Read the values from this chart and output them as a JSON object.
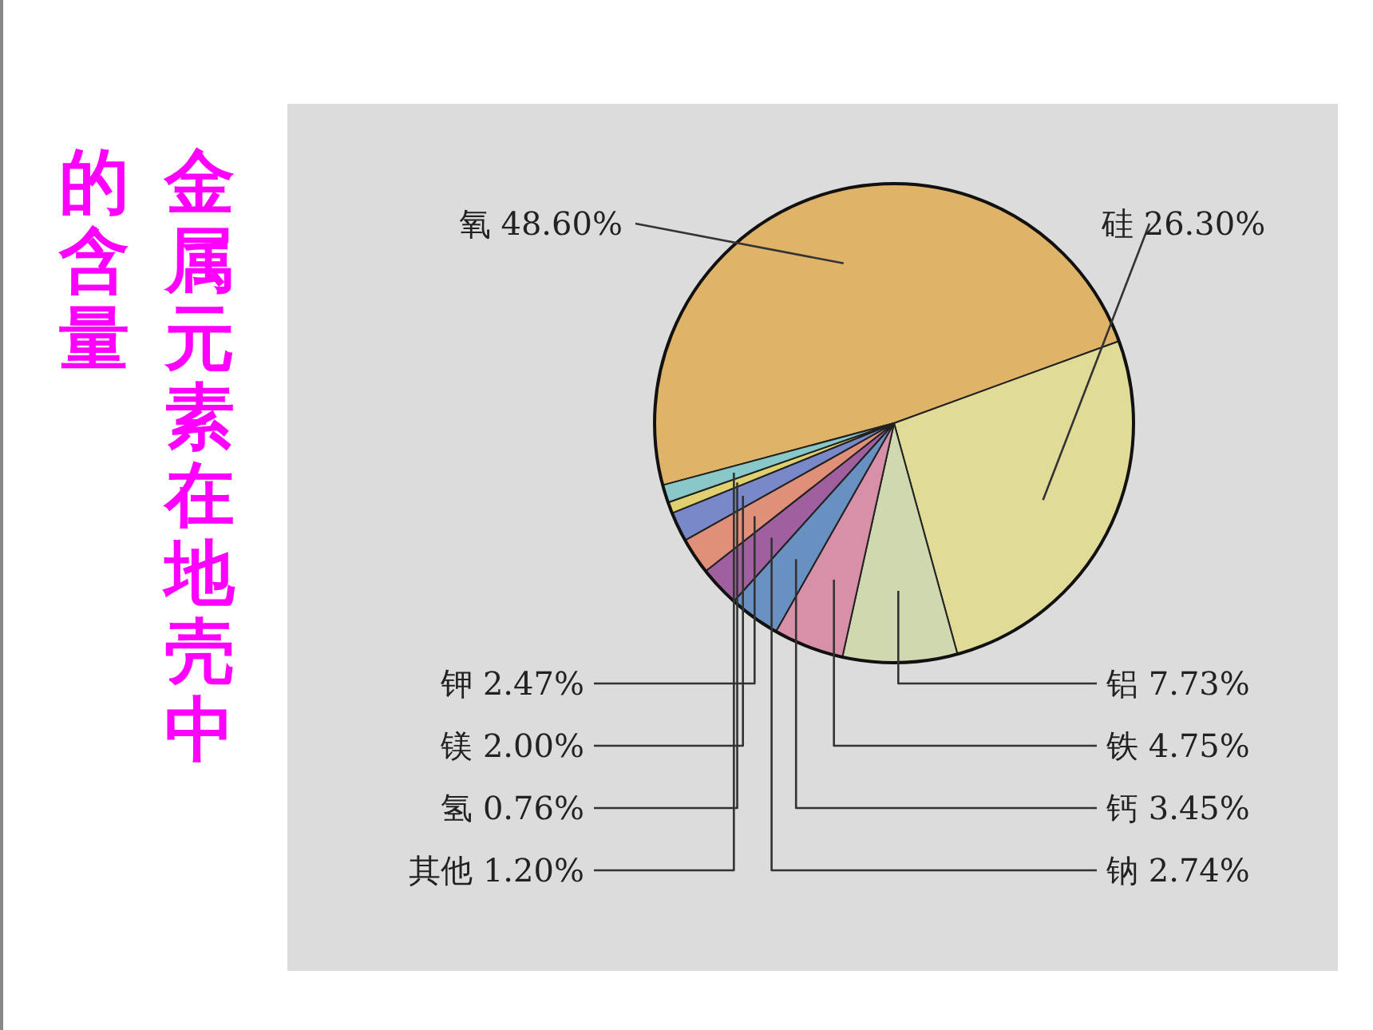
{
  "chart_data": {
    "type": "pie",
    "title": "金属元素在地壳中的含量",
    "categories": [
      "氧",
      "硅",
      "铝",
      "铁",
      "钙",
      "钠",
      "钾",
      "镁",
      "氢",
      "其他"
    ],
    "values": [
      48.6,
      26.3,
      7.73,
      4.75,
      3.45,
      2.74,
      2.47,
      2.0,
      0.76,
      1.2
    ],
    "colors": [
      "#e0b468",
      "#e0dc98",
      "#d0d8b0",
      "#d890a8",
      "#6890c0",
      "#a060a0",
      "#e09078",
      "#7888c8",
      "#e0d070",
      "#88c8c8"
    ],
    "value_labels": [
      "48.60%",
      "26.30%",
      "7.73%",
      "4.75%",
      "3.45%",
      "2.74%",
      "2.47%",
      "2.00%",
      "0.76%",
      "1.20%"
    ]
  }
}
